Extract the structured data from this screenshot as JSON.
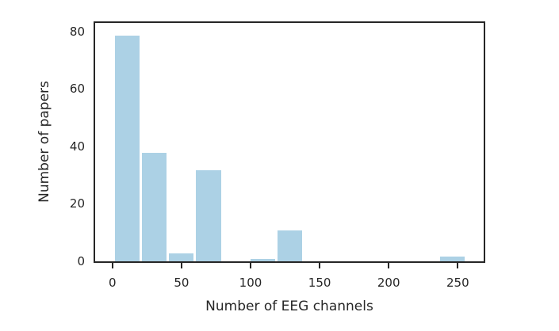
{
  "chart_data": {
    "type": "bar",
    "subtype": "histogram",
    "title": "",
    "xlabel": "Number of EEG channels",
    "ylabel": "Number of papers",
    "bin_edges": [
      1,
      20.6,
      40.2,
      59.8,
      79.5,
      99.1,
      118.7,
      138.3,
      157.9,
      177.5,
      197.1,
      216.8,
      236.4,
      256
    ],
    "values": [
      79,
      38,
      3,
      32,
      0,
      1,
      11,
      0,
      0,
      0,
      0,
      0,
      2
    ],
    "x_ticks": [
      0,
      50,
      100,
      150,
      200,
      250
    ],
    "y_ticks": [
      0,
      20,
      40,
      60,
      80
    ],
    "xlim": [
      -12.5,
      268.75
    ],
    "ylim": [
      0,
      83
    ],
    "grid": false,
    "legend": null,
    "bar_color": "#a6cee3",
    "bar_edge_color": "#ffffff",
    "spine_color": "#262626",
    "text_color": "#262626",
    "background_color": "#ffffff"
  }
}
